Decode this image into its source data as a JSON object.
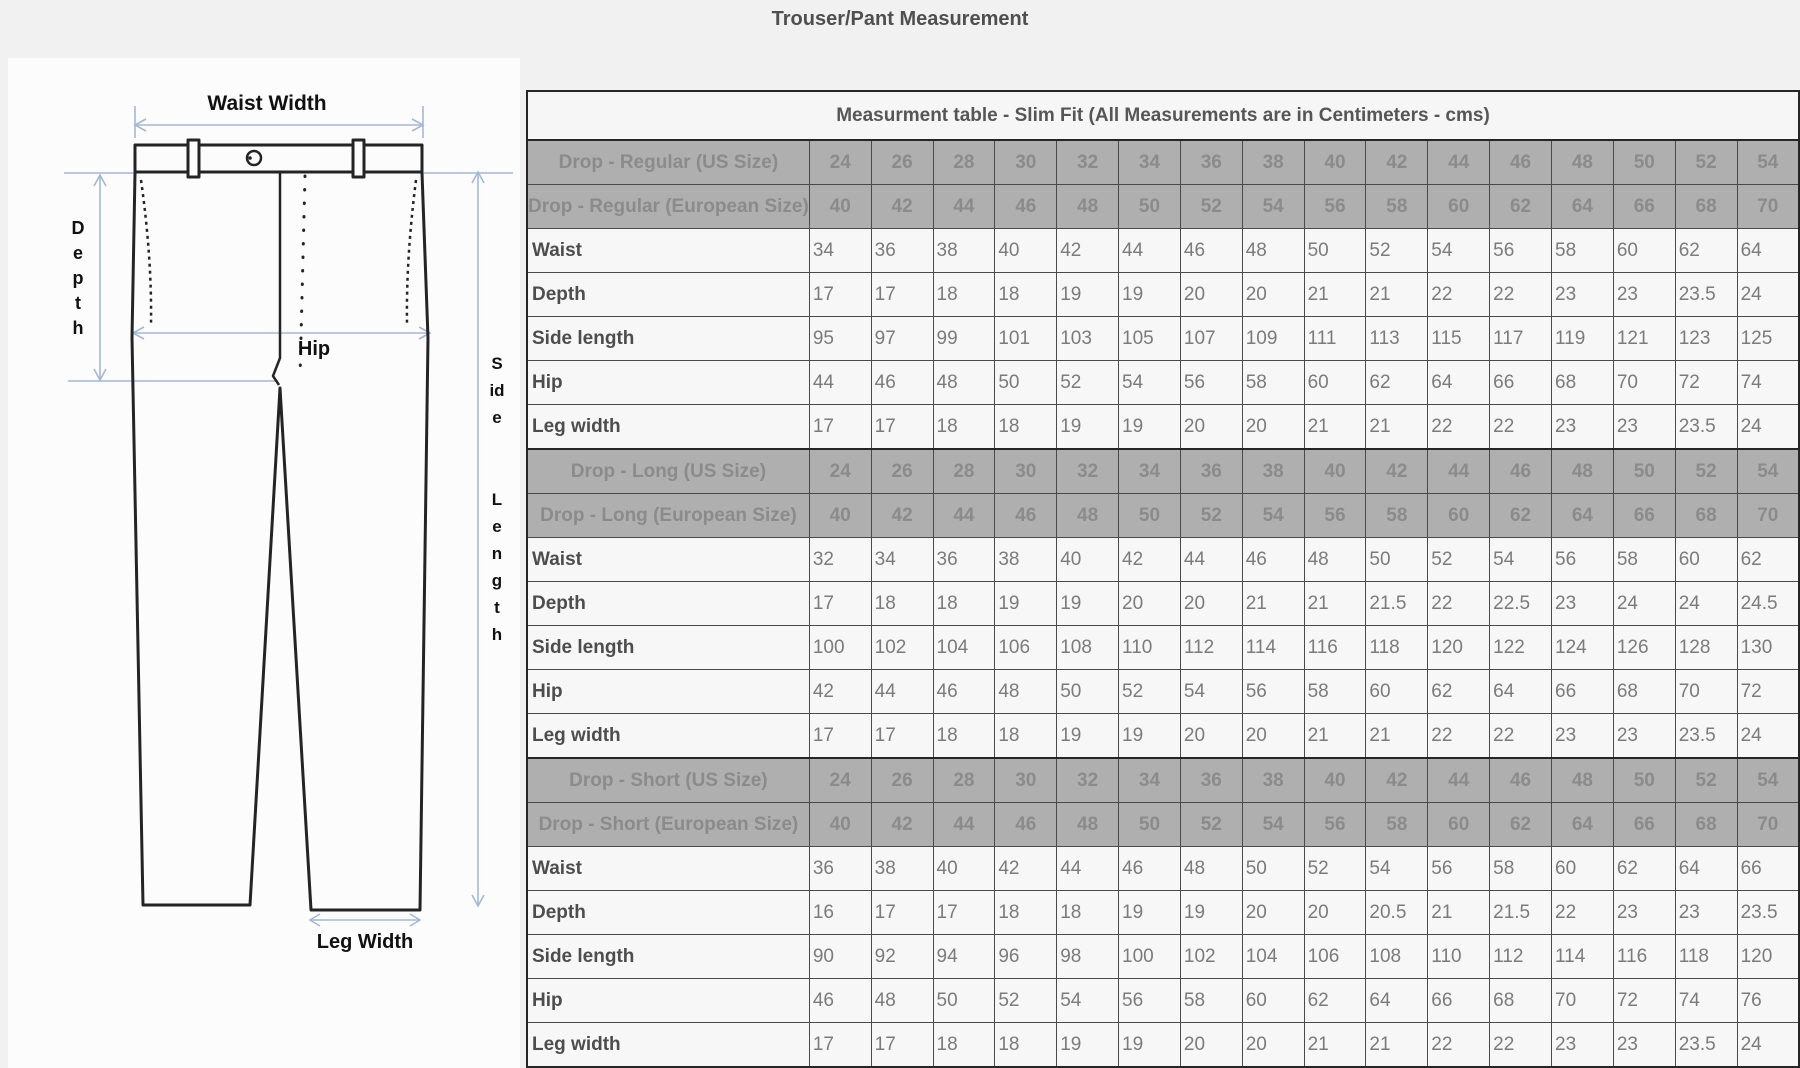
{
  "page": {
    "title": "Trouser/Pant Measurement"
  },
  "colors": {
    "page_bg": "#f1f1f1",
    "panel_bg": "#fcfcfc",
    "arrow": "#a4b8d3",
    "outline": "#242424",
    "header_row_bg": "#afafaf",
    "header_row_text": "#8b8b8b",
    "value_text": "#7b7b7b",
    "label_text": "#4d4d4d"
  },
  "diagram": {
    "labels": {
      "waist_width": "Waist Width",
      "depth": "Depth",
      "hip": "Hip",
      "side": "Side",
      "length": "Length",
      "leg_width": "Leg Width"
    }
  },
  "table": {
    "title": "Measurment table - Slim Fit (All Measurements are in Centimeters - cms)",
    "sections": [
      {
        "name": "Drop - Regular",
        "rows": [
          {
            "type": "header",
            "label": "Drop - Regular (US Size)",
            "values": [
              24,
              26,
              28,
              30,
              32,
              34,
              36,
              38,
              40,
              42,
              44,
              46,
              48,
              50,
              52,
              54
            ]
          },
          {
            "type": "header",
            "label": "Drop - Regular (European Size)",
            "values": [
              40,
              42,
              44,
              46,
              48,
              50,
              52,
              54,
              56,
              58,
              60,
              62,
              64,
              66,
              68,
              70
            ]
          },
          {
            "type": "data",
            "label": "Waist",
            "values": [
              34,
              36,
              38,
              40,
              42,
              44,
              46,
              48,
              50,
              52,
              54,
              56,
              58,
              60,
              62,
              64
            ]
          },
          {
            "type": "data",
            "label": "Depth",
            "values": [
              17,
              17,
              18,
              18,
              19,
              19,
              20,
              20,
              21,
              21,
              22,
              22,
              23,
              23,
              23.5,
              24
            ]
          },
          {
            "type": "data",
            "label": "Side length",
            "values": [
              95,
              97,
              99,
              101,
              103,
              105,
              107,
              109,
              111,
              113,
              115,
              117,
              119,
              121,
              123,
              125
            ]
          },
          {
            "type": "data",
            "label": "Hip",
            "values": [
              44,
              46,
              48,
              50,
              52,
              54,
              56,
              58,
              60,
              62,
              64,
              66,
              68,
              70,
              72,
              74
            ]
          },
          {
            "type": "data",
            "label": "Leg width",
            "values": [
              17,
              17,
              18,
              18,
              19,
              19,
              20,
              20,
              21,
              21,
              22,
              22,
              23,
              23,
              23.5,
              24
            ]
          }
        ]
      },
      {
        "name": "Drop - Long",
        "rows": [
          {
            "type": "header",
            "label": "Drop - Long (US Size)",
            "values": [
              24,
              26,
              28,
              30,
              32,
              34,
              36,
              38,
              40,
              42,
              44,
              46,
              48,
              50,
              52,
              54
            ]
          },
          {
            "type": "header",
            "label": "Drop - Long (European Size)",
            "values": [
              40,
              42,
              44,
              46,
              48,
              50,
              52,
              54,
              56,
              58,
              60,
              62,
              64,
              66,
              68,
              70
            ]
          },
          {
            "type": "data",
            "label": "Waist",
            "values": [
              32,
              34,
              36,
              38,
              40,
              42,
              44,
              46,
              48,
              50,
              52,
              54,
              56,
              58,
              60,
              62
            ]
          },
          {
            "type": "data",
            "label": "Depth",
            "values": [
              17,
              18,
              18,
              19,
              19,
              20,
              20,
              21,
              21,
              21.5,
              22,
              22.5,
              23,
              24,
              24,
              24.5
            ]
          },
          {
            "type": "data",
            "label": "Side length",
            "values": [
              100,
              102,
              104,
              106,
              108,
              110,
              112,
              114,
              116,
              118,
              120,
              122,
              124,
              126,
              128,
              130
            ]
          },
          {
            "type": "data",
            "label": "Hip",
            "values": [
              42,
              44,
              46,
              48,
              50,
              52,
              54,
              56,
              58,
              60,
              62,
              64,
              66,
              68,
              70,
              72
            ]
          },
          {
            "type": "data",
            "label": "Leg width",
            "values": [
              17,
              17,
              18,
              18,
              19,
              19,
              20,
              20,
              21,
              21,
              22,
              22,
              23,
              23,
              23.5,
              24
            ]
          }
        ]
      },
      {
        "name": "Drop - Short",
        "rows": [
          {
            "type": "header",
            "label": "Drop - Short (US Size)",
            "values": [
              24,
              26,
              28,
              30,
              32,
              34,
              36,
              38,
              40,
              42,
              44,
              46,
              48,
              50,
              52,
              54
            ]
          },
          {
            "type": "header",
            "label": "Drop - Short (European Size)",
            "values": [
              40,
              42,
              44,
              46,
              48,
              50,
              52,
              54,
              56,
              58,
              60,
              62,
              64,
              66,
              68,
              70
            ]
          },
          {
            "type": "data",
            "label": "Waist",
            "values": [
              36,
              38,
              40,
              42,
              44,
              46,
              48,
              50,
              52,
              54,
              56,
              58,
              60,
              62,
              64,
              66
            ]
          },
          {
            "type": "data",
            "label": "Depth",
            "values": [
              16,
              17,
              17,
              18,
              18,
              19,
              19,
              20,
              20,
              20.5,
              21,
              21.5,
              22,
              23,
              23,
              23.5
            ]
          },
          {
            "type": "data",
            "label": "Side length",
            "values": [
              90,
              92,
              94,
              96,
              98,
              100,
              102,
              104,
              106,
              108,
              110,
              112,
              114,
              116,
              118,
              120
            ]
          },
          {
            "type": "data",
            "label": "Hip",
            "values": [
              46,
              48,
              50,
              52,
              54,
              56,
              58,
              60,
              62,
              64,
              66,
              68,
              70,
              72,
              74,
              76
            ]
          },
          {
            "type": "data",
            "label": "Leg width",
            "values": [
              17,
              17,
              18,
              18,
              19,
              19,
              20,
              20,
              21,
              21,
              22,
              22,
              23,
              23,
              23.5,
              24
            ]
          }
        ]
      }
    ]
  }
}
